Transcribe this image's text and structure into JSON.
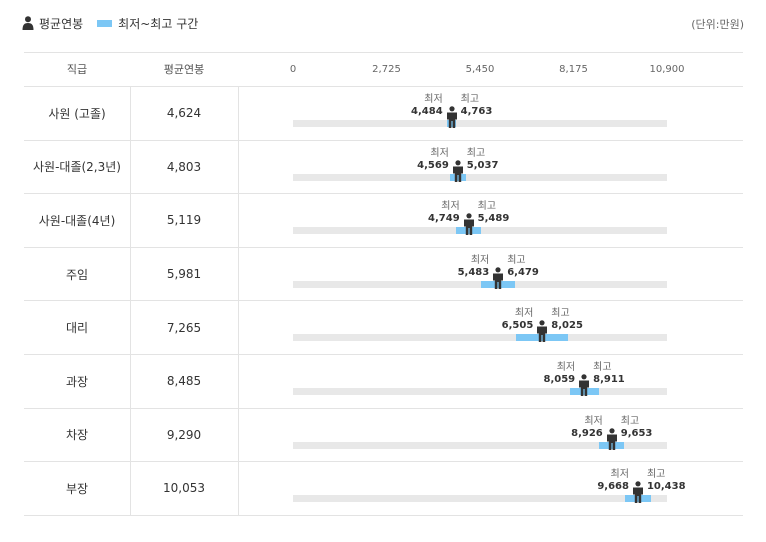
{
  "legend": {
    "avg_label": "평균연봉",
    "range_label": "최저~최고 구간",
    "person_icon": "person-icon"
  },
  "unit": "(단위:만원)",
  "headers": {
    "position": "직급",
    "avg": "평균연봉"
  },
  "colors": {
    "range": "#7cc7f5",
    "track": "#e8e8e8",
    "person": "#333333"
  },
  "chart_data": {
    "type": "range",
    "x_ticks": [
      "0",
      "2,725",
      "5,450",
      "8,175",
      "10,900"
    ],
    "xlim": [
      0,
      10900
    ],
    "min_caption": "최저",
    "max_caption": "최고",
    "rows": [
      {
        "position": "사원 (고졸)",
        "avg": "4,624",
        "avg_value": 4624,
        "min": "4,484",
        "min_value": 4484,
        "max": "4,763",
        "max_value": 4763
      },
      {
        "position": "사원-대졸(2,3년)",
        "avg": "4,803",
        "avg_value": 4803,
        "min": "4,569",
        "min_value": 4569,
        "max": "5,037",
        "max_value": 5037
      },
      {
        "position": "사원-대졸(4년)",
        "avg": "5,119",
        "avg_value": 5119,
        "min": "4,749",
        "min_value": 4749,
        "max": "5,489",
        "max_value": 5489
      },
      {
        "position": "주임",
        "avg": "5,981",
        "avg_value": 5981,
        "min": "5,483",
        "min_value": 5483,
        "max": "6,479",
        "max_value": 6479
      },
      {
        "position": "대리",
        "avg": "7,265",
        "avg_value": 7265,
        "min": "6,505",
        "min_value": 6505,
        "max": "8,025",
        "max_value": 8025
      },
      {
        "position": "과장",
        "avg": "8,485",
        "avg_value": 8485,
        "min": "8,059",
        "min_value": 8059,
        "max": "8,911",
        "max_value": 8911
      },
      {
        "position": "차장",
        "avg": "9,290",
        "avg_value": 9290,
        "min": "8,926",
        "min_value": 8926,
        "max": "9,653",
        "max_value": 9653
      },
      {
        "position": "부장",
        "avg": "10,053",
        "avg_value": 10053,
        "min": "9,668",
        "min_value": 9668,
        "max": "10,438",
        "max_value": 10438
      }
    ]
  }
}
